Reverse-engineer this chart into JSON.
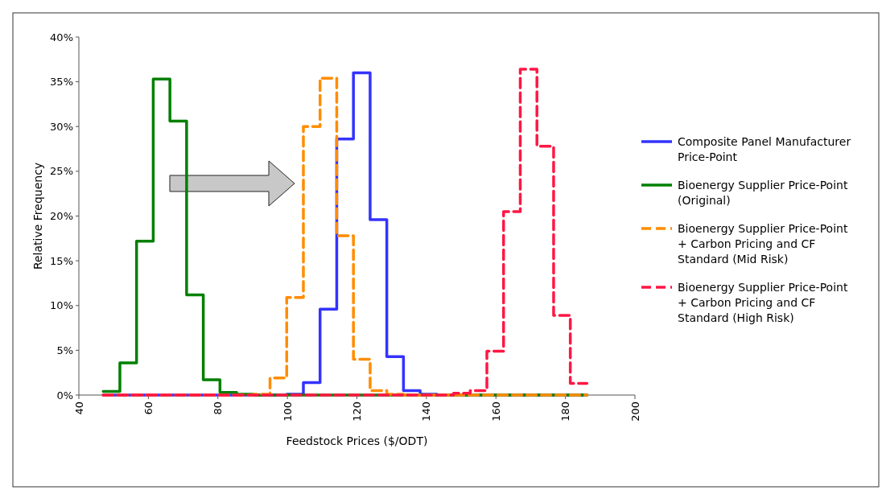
{
  "chart_data": {
    "type": "histogram",
    "xlabel": "Feedstock Prices ($/ODT)",
    "ylabel": "Relative Frequency",
    "bins": [
      47,
      51.8,
      56.6,
      61.4,
      66.2,
      71,
      75.8,
      80.6,
      85.4,
      90.2,
      95,
      99.8,
      104.6,
      109.4,
      114.2,
      119,
      123.8,
      128.6,
      133.4,
      138.2,
      143,
      147.8,
      152.6,
      157.4,
      162.2,
      167,
      171.8,
      176.6,
      181.4,
      186.2
    ],
    "series": [
      {
        "name": "Composite Panel Manufacturer Price-Point",
        "color": "#3333ff",
        "line_style": "solid",
        "values": [
          0,
          0,
          0,
          0,
          0,
          0,
          0,
          0,
          0,
          0,
          0,
          0.1,
          1.4,
          9.6,
          28.6,
          36.0,
          19.6,
          4.3,
          0.5,
          0.1,
          0,
          0,
          0,
          0,
          0,
          0,
          0,
          0,
          0
        ]
      },
      {
        "name": "Bioenergy Supplier Price-Point (Original)",
        "color": "#008000",
        "line_style": "solid",
        "values": [
          0.4,
          3.6,
          17.2,
          35.3,
          30.6,
          11.2,
          1.7,
          0.3,
          0.1,
          0,
          0,
          0,
          0,
          0,
          0,
          0,
          0,
          0,
          0,
          0,
          0,
          0,
          0,
          0,
          0,
          0,
          0,
          0,
          0
        ]
      },
      {
        "name": "Bioenergy Supplier Price-Point + Carbon Pricing and CF Standard (Mid Risk)",
        "color": "#ff8c00",
        "line_style": "dashed",
        "values": [
          0,
          0,
          0,
          0,
          0,
          0,
          0,
          0,
          0,
          0.1,
          1.9,
          10.9,
          30.0,
          35.4,
          17.8,
          4.0,
          0.5,
          0.1,
          0,
          0,
          0,
          0,
          0,
          0,
          0,
          0,
          0,
          0,
          0
        ]
      },
      {
        "name": "Bioenergy Supplier Price-Point + Carbon Pricing and CF Standard (High Risk)",
        "color": "#ff1744",
        "line_style": "dashed",
        "values": [
          0,
          0,
          0,
          0,
          0,
          0,
          0,
          0,
          0,
          0,
          0,
          0,
          0,
          0,
          0,
          0,
          0,
          0,
          0,
          0,
          0,
          0.2,
          0.5,
          4.9,
          20.5,
          36.4,
          27.8,
          8.9,
          1.3
        ]
      }
    ],
    "xlim": [
      40,
      200
    ],
    "xticks": [
      40,
      60,
      80,
      100,
      120,
      140,
      160,
      180,
      200
    ],
    "ylim": [
      0,
      40
    ],
    "yticks": [
      {
        "value": 0,
        "label": "0%"
      },
      {
        "value": 5,
        "label": "5%"
      },
      {
        "value": 10,
        "label": "10%"
      },
      {
        "value": 15,
        "label": "15%"
      },
      {
        "value": 20,
        "label": "20%"
      },
      {
        "value": 25,
        "label": "25%"
      },
      {
        "value": 30,
        "label": "30%"
      },
      {
        "value": 35,
        "label": "35%"
      },
      {
        "value": 40,
        "label": "40%"
      }
    ],
    "legend": "right",
    "grid": false
  }
}
